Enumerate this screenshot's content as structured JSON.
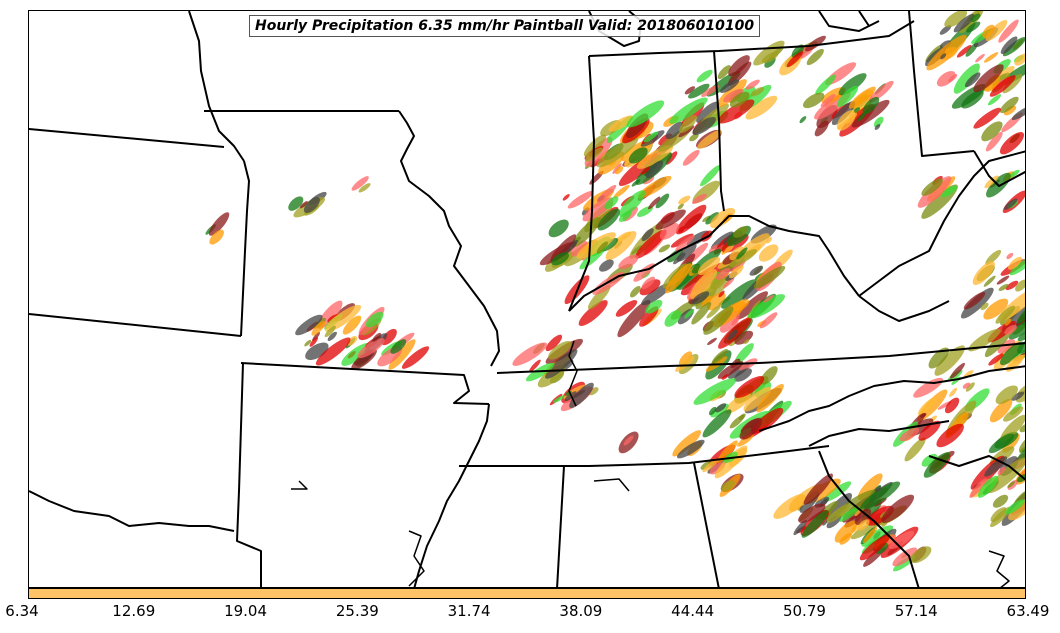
{
  "title": "Hourly Precipitation 6.35 mm/hr Paintball Valid: 201806010100",
  "colorbar": {
    "color": "#FFC266",
    "ticks": [
      "6.34",
      "12.69",
      "19.04",
      "25.39",
      "31.74",
      "38.09",
      "44.44",
      "50.79",
      "57.14",
      "63.49"
    ]
  },
  "colors": {
    "state_lines": "#000000",
    "paintball_members": [
      "#E00000",
      "#FF6666",
      "#FF9900",
      "#FFB833",
      "#33DD33",
      "#117711",
      "#7A8C10",
      "#A0A020",
      "#8B1A1A",
      "#444444"
    ]
  }
}
